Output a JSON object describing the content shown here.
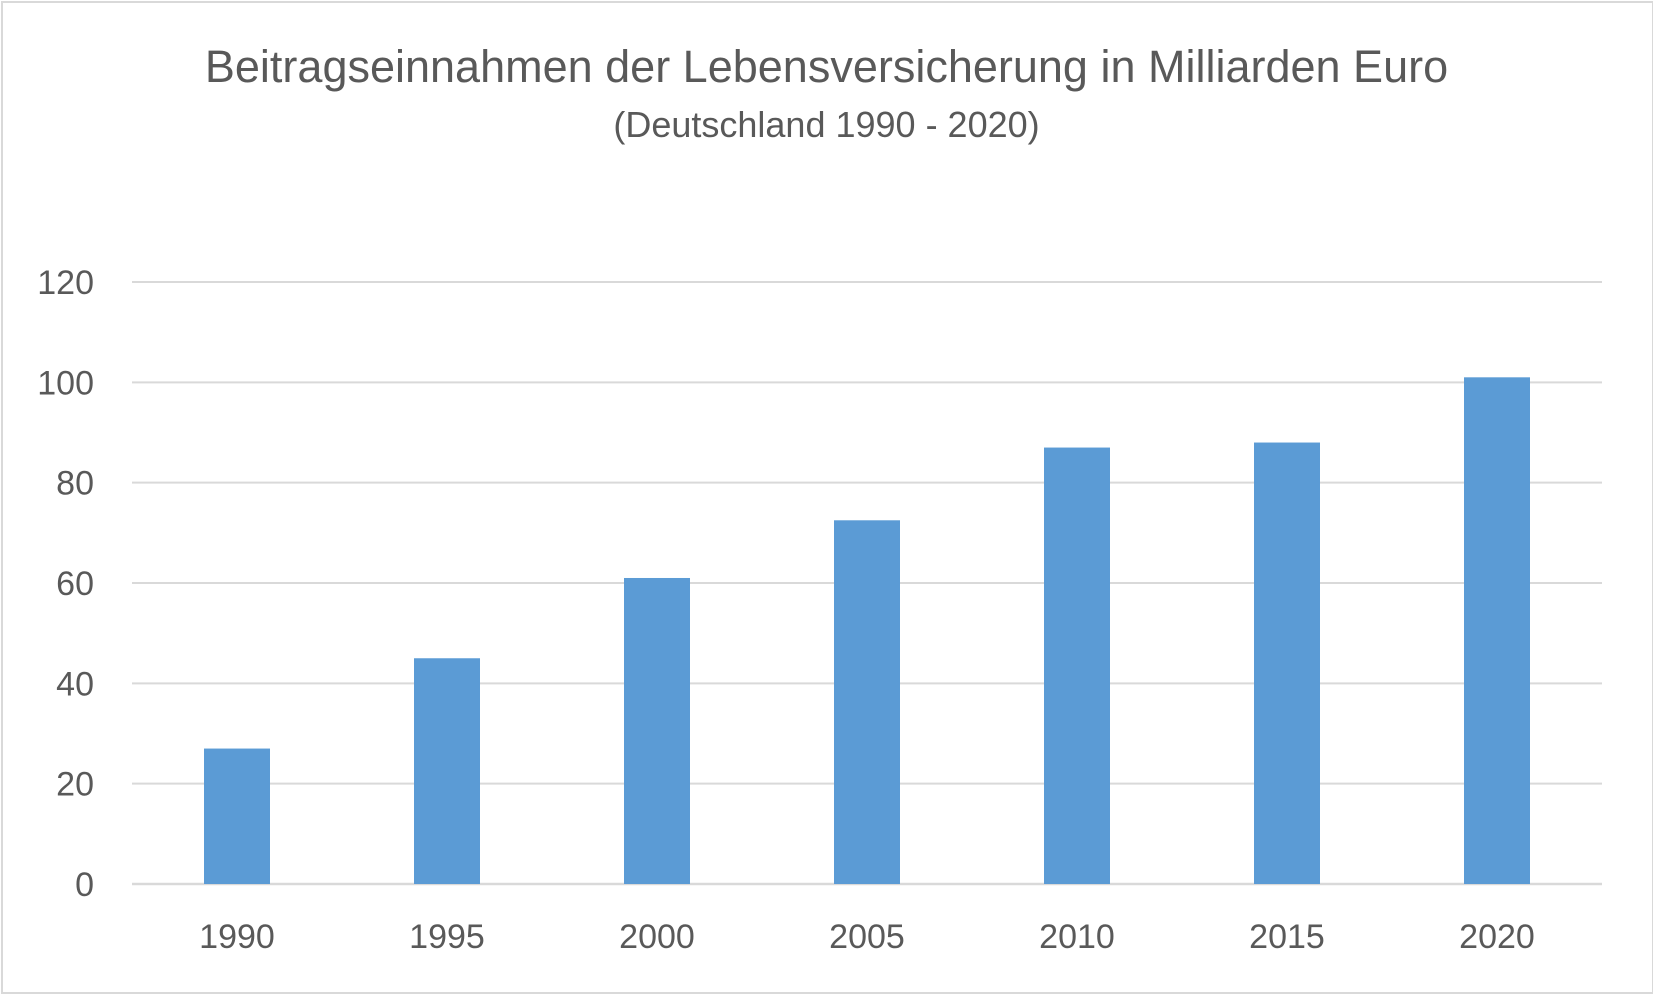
{
  "chart_data": {
    "type": "bar",
    "title": "Beitragseinnahmen der Lebensversicherung in Milliarden Euro",
    "subtitle": "(Deutschland 1990 - 2020)",
    "categories": [
      "1990",
      "1995",
      "2000",
      "2005",
      "2010",
      "2015",
      "2020"
    ],
    "values": [
      27,
      45,
      61,
      72.5,
      87,
      88,
      101
    ],
    "ylim": [
      0,
      120
    ],
    "yticks": [
      0,
      20,
      40,
      60,
      80,
      100,
      120
    ],
    "grid": true,
    "legend": "none",
    "bar_color": "#5b9bd5",
    "grid_color": "#d9d9d9"
  }
}
